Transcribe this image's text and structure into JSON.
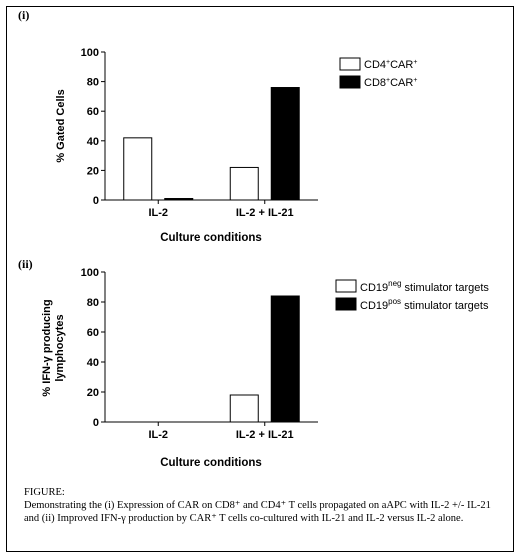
{
  "panel1": {
    "label": "(i)",
    "chart_data": {
      "type": "bar",
      "categories": [
        "IL-2",
        "IL-2 + IL-21"
      ],
      "series": [
        {
          "name": "CD4⁺CAR⁺",
          "values": [
            42,
            22
          ],
          "color": "#ffffff"
        },
        {
          "name": "CD8⁺CAR⁺",
          "values": [
            1,
            76
          ],
          "color": "#000000"
        }
      ],
      "xlabel": "Culture conditions",
      "ylabel": "% Gated Cells",
      "ylim": [
        0,
        100
      ],
      "yticks": [
        0,
        20,
        40,
        60,
        80,
        100
      ],
      "legend_position": "right"
    }
  },
  "panel2": {
    "label": "(ii)",
    "chart_data": {
      "type": "bar",
      "categories": [
        "IL-2",
        "IL-2 + IL-21"
      ],
      "series": [
        {
          "name": "CD19neg stimulator targets",
          "values": [
            0,
            18
          ],
          "color": "#ffffff"
        },
        {
          "name": "CD19pos stimulator targets",
          "values": [
            0,
            84
          ],
          "color": "#000000"
        }
      ],
      "xlabel": "Culture conditions",
      "ylabel_line1": "% IFN-γ producing",
      "ylabel_line2": "lymphocytes",
      "ylim": [
        0,
        100
      ],
      "yticks": [
        0,
        20,
        40,
        60,
        80,
        100
      ],
      "legend_position": "right"
    }
  },
  "caption": {
    "heading": "FIGURE:",
    "text": "Demonstrating the (i) Expression of CAR on CD8⁺ and CD4⁺ T cells propagated on aAPC with IL-2 +/- IL-21 and (ii) Improved IFN-γ production by CAR⁺ T cells co-cultured with IL-21 and IL-2 versus IL-2 alone."
  }
}
